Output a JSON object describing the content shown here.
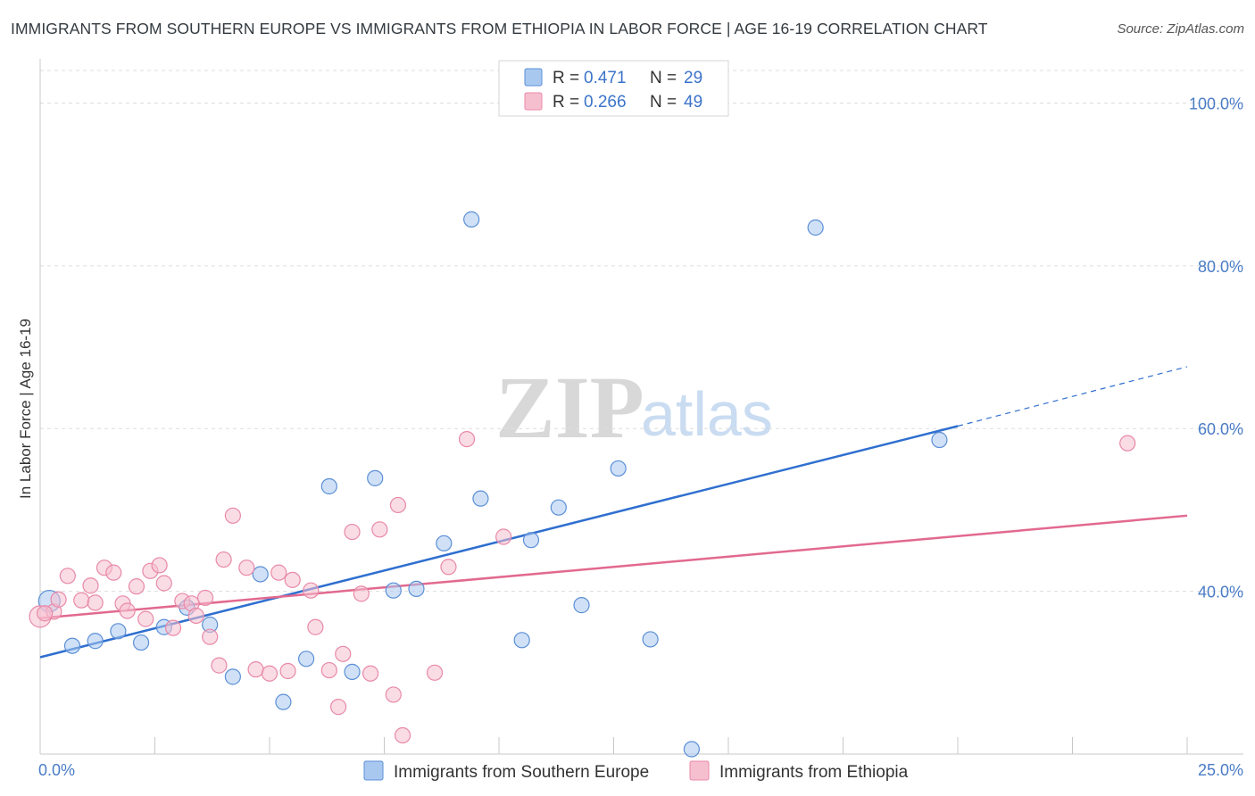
{
  "title": "IMMIGRANTS FROM SOUTHERN EUROPE VS IMMIGRANTS FROM ETHIOPIA IN LABOR FORCE | AGE 16-19 CORRELATION CHART",
  "source": "Source: ZipAtlas.com",
  "watermark": {
    "zip": "ZIP",
    "atlas": "atlas"
  },
  "colors": {
    "blue_fill": "#a9c8f0",
    "blue_stroke": "#5b8fd6",
    "blue_line": "#2f6fcf",
    "pink_fill": "#f6bfd0",
    "pink_stroke": "#e889a8",
    "pink_line": "#e2698f",
    "grid": "#dddddd",
    "axis_label": "#4a7cc6"
  },
  "chart_data": {
    "type": "scatter",
    "xlabel": "",
    "ylabel": "In Labor Force | Age 16-19",
    "xlim": [
      0,
      25
    ],
    "ylim": [
      20,
      104
    ],
    "x_tick_labels": [
      {
        "value": 0,
        "label": "0.0%"
      },
      {
        "value": 25,
        "label": "25.0%"
      }
    ],
    "y_tick_labels": [
      {
        "value": 40,
        "label": "40.0%"
      },
      {
        "value": 60,
        "label": "60.0%"
      },
      {
        "value": 80,
        "label": "80.0%"
      },
      {
        "value": 100,
        "label": "100.0%"
      }
    ],
    "legend": [
      {
        "r_label": "R =",
        "r_value": "0.471",
        "n_label": "N =",
        "n_value": "29"
      },
      {
        "r_label": "R =",
        "r_value": "0.266",
        "n_label": "N =",
        "n_value": "49"
      }
    ],
    "series": [
      {
        "name": "Immigrants from Southern Europe",
        "color": "blue",
        "trend": {
          "x0": 0,
          "y0": 31.9,
          "x1": 20,
          "y1": 60.3,
          "dash_to_x": 25,
          "dash_to_y": 67.6
        },
        "points": [
          [
            0.2,
            38.8
          ],
          [
            0.7,
            33.3
          ],
          [
            1.2,
            33.9
          ],
          [
            1.7,
            35.1
          ],
          [
            2.2,
            33.7
          ],
          [
            2.7,
            35.6
          ],
          [
            3.2,
            38.0
          ],
          [
            3.7,
            35.9
          ],
          [
            4.2,
            29.5
          ],
          [
            4.8,
            42.1
          ],
          [
            5.3,
            26.4
          ],
          [
            5.8,
            31.7
          ],
          [
            6.3,
            52.9
          ],
          [
            6.8,
            30.1
          ],
          [
            7.3,
            53.9
          ],
          [
            7.7,
            40.1
          ],
          [
            8.2,
            40.3
          ],
          [
            8.8,
            45.9
          ],
          [
            9.4,
            85.7
          ],
          [
            9.6,
            51.4
          ],
          [
            10.5,
            34.0
          ],
          [
            10.7,
            46.3
          ],
          [
            11.3,
            50.3
          ],
          [
            11.8,
            38.3
          ],
          [
            12.6,
            55.1
          ],
          [
            13.3,
            34.1
          ],
          [
            14.2,
            20.6
          ],
          [
            16.9,
            84.7
          ],
          [
            19.6,
            58.6
          ]
        ]
      },
      {
        "name": "Immigrants from Ethiopia",
        "color": "pink",
        "trend": {
          "x0": 0,
          "y0": 36.7,
          "x1": 25,
          "y1": 49.3
        },
        "points": [
          [
            0.0,
            36.9
          ],
          [
            0.3,
            37.5
          ],
          [
            0.4,
            39.0
          ],
          [
            0.6,
            41.9
          ],
          [
            0.9,
            38.9
          ],
          [
            1.1,
            40.7
          ],
          [
            1.2,
            38.6
          ],
          [
            1.4,
            42.9
          ],
          [
            1.6,
            42.3
          ],
          [
            1.8,
            38.5
          ],
          [
            1.9,
            37.6
          ],
          [
            2.1,
            40.6
          ],
          [
            2.3,
            36.6
          ],
          [
            2.4,
            42.5
          ],
          [
            2.6,
            43.2
          ],
          [
            2.7,
            41.0
          ],
          [
            2.9,
            35.5
          ],
          [
            3.1,
            38.8
          ],
          [
            3.3,
            38.5
          ],
          [
            3.4,
            37.0
          ],
          [
            3.6,
            39.2
          ],
          [
            3.7,
            34.4
          ],
          [
            3.9,
            30.9
          ],
          [
            4.0,
            43.9
          ],
          [
            4.2,
            49.3
          ],
          [
            4.5,
            42.9
          ],
          [
            4.7,
            30.4
          ],
          [
            5.0,
            29.9
          ],
          [
            5.2,
            42.3
          ],
          [
            5.4,
            30.2
          ],
          [
            5.5,
            41.4
          ],
          [
            5.9,
            40.1
          ],
          [
            6.0,
            35.6
          ],
          [
            6.3,
            30.3
          ],
          [
            6.5,
            25.8
          ],
          [
            6.6,
            32.3
          ],
          [
            6.8,
            47.3
          ],
          [
            7.0,
            39.7
          ],
          [
            7.2,
            29.9
          ],
          [
            7.4,
            47.6
          ],
          [
            7.7,
            27.3
          ],
          [
            7.8,
            50.6
          ],
          [
            7.9,
            22.3
          ],
          [
            8.6,
            30.0
          ],
          [
            8.9,
            43.0
          ],
          [
            9.3,
            58.7
          ],
          [
            10.1,
            46.7
          ],
          [
            23.7,
            58.2
          ],
          [
            0.1,
            37.3
          ]
        ]
      }
    ]
  }
}
